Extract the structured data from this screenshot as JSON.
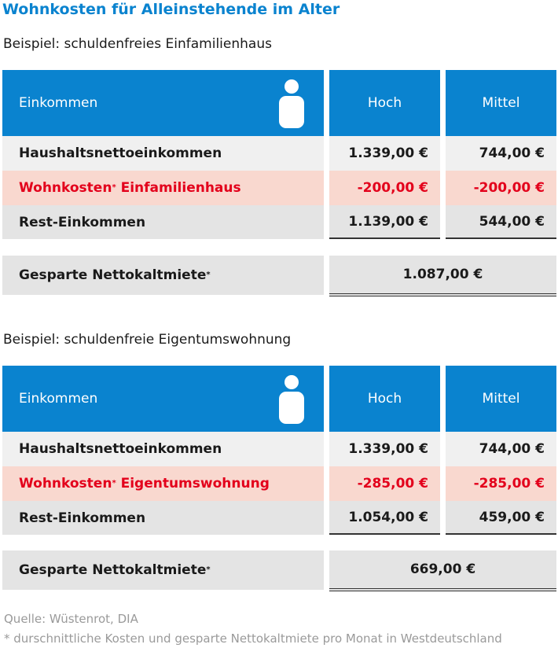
{
  "title": "Wohnkosten für Alleinstehende im Alter",
  "tables": [
    {
      "subtitle": "Beispiel: schuldenfreies Einfamilienhaus",
      "header": {
        "label": "Einkommen",
        "col1": "Hoch",
        "col2": "Mittel",
        "icon": "person-icon"
      },
      "rows": [
        {
          "label": "Haushaltsnettoeinkommen",
          "sup": "",
          "suffix": "",
          "hoch": "1.339,00 €",
          "mittel": "744,00 €"
        },
        {
          "label": "Wohnkosten",
          "sup": "*",
          "suffix": " Einfamilienhaus",
          "hoch": "-200,00 €",
          "mittel": "-200,00 €"
        },
        {
          "label": "Rest-Einkommen",
          "sup": "",
          "suffix": "",
          "hoch": "1.139,00 €",
          "mittel": "544,00 €"
        }
      ],
      "savings": {
        "label": "Gesparte Nettokaltmiete",
        "sup": "*",
        "value": "1.087,00 €"
      }
    },
    {
      "subtitle": "Beispiel: schuldenfreie Eigentumswohnung",
      "header": {
        "label": "Einkommen",
        "col1": "Hoch",
        "col2": "Mittel",
        "icon": "person-icon"
      },
      "rows": [
        {
          "label": "Haushaltsnettoeinkommen",
          "sup": "",
          "suffix": "",
          "hoch": "1.339,00 €",
          "mittel": "744,00 €"
        },
        {
          "label": "Wohnkosten",
          "sup": "*",
          "suffix": " Eigentumswohnung",
          "hoch": "-285,00 €",
          "mittel": "-285,00 €"
        },
        {
          "label": "Rest-Einkommen",
          "sup": "",
          "suffix": "",
          "hoch": "1.054,00 €",
          "mittel": "459,00 €"
        }
      ],
      "savings": {
        "label": "Gesparte Nettokaltmiete",
        "sup": "*",
        "value": "669,00 €"
      }
    }
  ],
  "footer": {
    "source": "Quelle: Wüstenrot, DIA",
    "note": "* durschnittliche Kosten und gesparte Nettokaltmiete pro Monat in Westdeutschland"
  },
  "colors": {
    "accent": "#0a83cf",
    "highlight_text": "#e3001b",
    "highlight_bg": "#f9d8cf"
  }
}
